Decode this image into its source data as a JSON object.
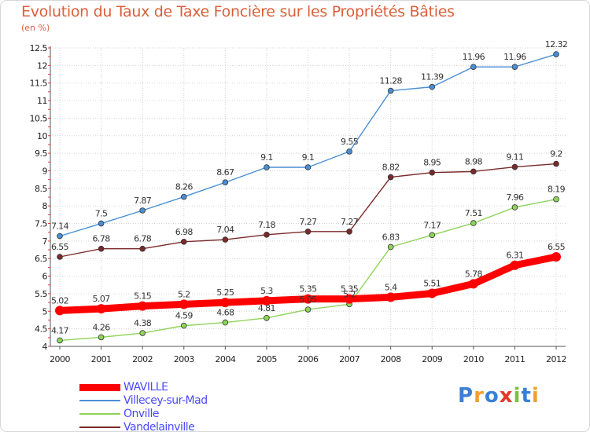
{
  "chart_data": {
    "type": "line",
    "title": "Evolution du Taux de Taxe Foncière sur les Propriétés Bâties",
    "ylabel": "(en %)",
    "xlabel": "",
    "ylim": [
      4,
      12.5
    ],
    "yticks": [
      "4",
      "4.5",
      "5",
      "5.5",
      "6",
      "6.5",
      "7",
      "7.5",
      "8",
      "8.5",
      "9",
      "9.5",
      "10",
      "10.5",
      "11",
      "11.5",
      "12",
      "12.5"
    ],
    "categories": [
      "2000",
      "2001",
      "2002",
      "2003",
      "2004",
      "2005",
      "2006",
      "2007",
      "2008",
      "2009",
      "2010",
      "2011",
      "2012"
    ],
    "series": [
      {
        "name": "WAVILLE",
        "color": "#ff0000",
        "values": [
          5.02,
          5.07,
          5.15,
          5.2,
          5.25,
          5.3,
          5.35,
          5.35,
          5.4,
          5.51,
          5.78,
          6.31,
          6.55
        ],
        "labels": [
          "5.02",
          "5.07",
          "5.15",
          "5.2",
          "5.25",
          "5.3",
          "5.35",
          "5.35",
          "5.4",
          "5.51",
          "5.78",
          "6.31",
          "6.55"
        ]
      },
      {
        "name": "Villecey-sur-Mad",
        "color": "#4a8fd4",
        "values": [
          7.14,
          7.5,
          7.87,
          8.26,
          8.67,
          9.1,
          9.1,
          9.55,
          11.28,
          11.39,
          11.96,
          11.96,
          12.32
        ],
        "labels": [
          "7.14",
          "7.5",
          "7.87",
          "8.26",
          "8.67",
          "9.1",
          "9.1",
          "9.55",
          "11.28",
          "11.39",
          "11.96",
          "11.96",
          "12.32"
        ]
      },
      {
        "name": "Onville",
        "color": "#8fd45a",
        "values": [
          4.17,
          4.26,
          4.38,
          4.59,
          4.68,
          4.81,
          5.05,
          5.2,
          6.83,
          7.17,
          7.51,
          7.96,
          8.19
        ],
        "labels": [
          "4.17",
          "4.26",
          "4.38",
          "4.59",
          "4.68",
          "4.81",
          "5.05",
          "5.2",
          "6.83",
          "7.17",
          "7.51",
          "7.96",
          "8.19"
        ]
      },
      {
        "name": "Vandelainville",
        "color": "#7a2a2a",
        "values": [
          6.55,
          6.78,
          6.78,
          6.98,
          7.04,
          7.18,
          7.27,
          7.27,
          8.82,
          8.95,
          8.98,
          9.11,
          9.2
        ],
        "labels": [
          "6.55",
          "6.78",
          "6.78",
          "6.98",
          "7.04",
          "7.18",
          "7.27",
          "7.27",
          "8.82",
          "8.95",
          "8.98",
          "9.11",
          "9.2"
        ]
      }
    ],
    "legend": "bottom-left"
  },
  "logo": {
    "text": "Proxiti",
    "letters": [
      "P",
      "r",
      "o",
      "x",
      "i",
      "t",
      "i"
    ],
    "colors": [
      "#3a7fd5",
      "#f0a030",
      "#3a7fd5",
      "#e03a2a",
      "#7cc03a",
      "#3a7fd5",
      "#f0a030"
    ]
  }
}
